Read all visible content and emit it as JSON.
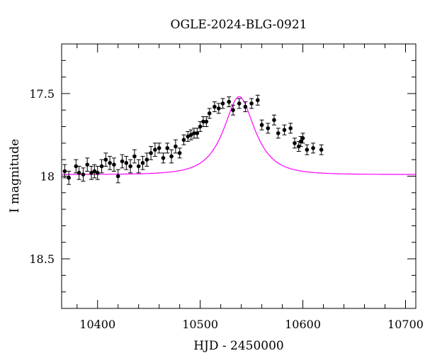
{
  "chart_data": {
    "type": "scatter",
    "title": "OGLE-2024-BLG-0921",
    "xlabel": "HJD - 2450000",
    "ylabel": "I magnitude",
    "xlim": [
      10365,
      10710
    ],
    "ylim": [
      18.8,
      17.2
    ],
    "y_inverted": true,
    "grid": false,
    "legend": "none",
    "x_ticks_major": [
      10400,
      10500,
      10600,
      10700
    ],
    "y_ticks_major": [
      17.5,
      18,
      18.5
    ],
    "x_tick_labels": [
      "10400",
      "10500",
      "10600",
      "10700"
    ],
    "y_tick_labels": [
      "17.5",
      "18",
      "18.5"
    ],
    "colors": {
      "points": "#000000",
      "model": "#ff00ff"
    },
    "series": [
      {
        "type": "scatter",
        "x": [
          10368,
          10372,
          10379,
          10382,
          10386,
          10390,
          10394,
          10397,
          10400,
          10404,
          10408,
          10412,
          10416,
          10420,
          10424,
          10428,
          10432,
          10436,
          10440,
          10444,
          10448,
          10452,
          10456,
          10460,
          10464,
          10468,
          10472,
          10476,
          10480,
          10484,
          10488,
          10491,
          10494,
          10497,
          10500,
          10503,
          10506,
          10509,
          10514,
          10518,
          10522,
          10528,
          10532,
          10538,
          10544,
          10550,
          10556,
          10560,
          10566,
          10572,
          10576,
          10582,
          10588,
          10592,
          10596,
          10598,
          10600,
          10604,
          10610,
          10618
        ],
        "y": [
          17.97,
          18.01,
          17.94,
          17.98,
          17.99,
          17.93,
          17.98,
          17.97,
          17.98,
          17.94,
          17.9,
          17.92,
          17.93,
          18.0,
          17.91,
          17.92,
          17.94,
          17.88,
          17.94,
          17.92,
          17.9,
          17.86,
          17.84,
          17.83,
          17.89,
          17.83,
          17.88,
          17.82,
          17.86,
          17.78,
          17.76,
          17.75,
          17.74,
          17.74,
          17.7,
          17.67,
          17.67,
          17.62,
          17.58,
          17.59,
          17.56,
          17.55,
          17.6,
          17.56,
          17.58,
          17.56,
          17.54,
          17.69,
          17.71,
          17.66,
          17.74,
          17.72,
          17.71,
          17.8,
          17.82,
          17.79,
          17.77,
          17.84,
          17.83,
          17.84
        ],
        "err": [
          0.04,
          0.04,
          0.04,
          0.04,
          0.04,
          0.04,
          0.04,
          0.04,
          0.04,
          0.04,
          0.04,
          0.04,
          0.04,
          0.04,
          0.04,
          0.04,
          0.04,
          0.04,
          0.04,
          0.04,
          0.04,
          0.04,
          0.04,
          0.03,
          0.03,
          0.03,
          0.04,
          0.04,
          0.03,
          0.03,
          0.03,
          0.03,
          0.03,
          0.03,
          0.03,
          0.03,
          0.03,
          0.03,
          0.03,
          0.03,
          0.03,
          0.03,
          0.03,
          0.03,
          0.03,
          0.03,
          0.03,
          0.03,
          0.03,
          0.03,
          0.03,
          0.03,
          0.03,
          0.03,
          0.03,
          0.03,
          0.03,
          0.03,
          0.03,
          0.03
        ]
      },
      {
        "type": "line",
        "model": "paczynski",
        "t0": 10538,
        "tE": 26,
        "u0": 0.56,
        "mag_base": 17.99,
        "fs": 0.55
      }
    ]
  }
}
